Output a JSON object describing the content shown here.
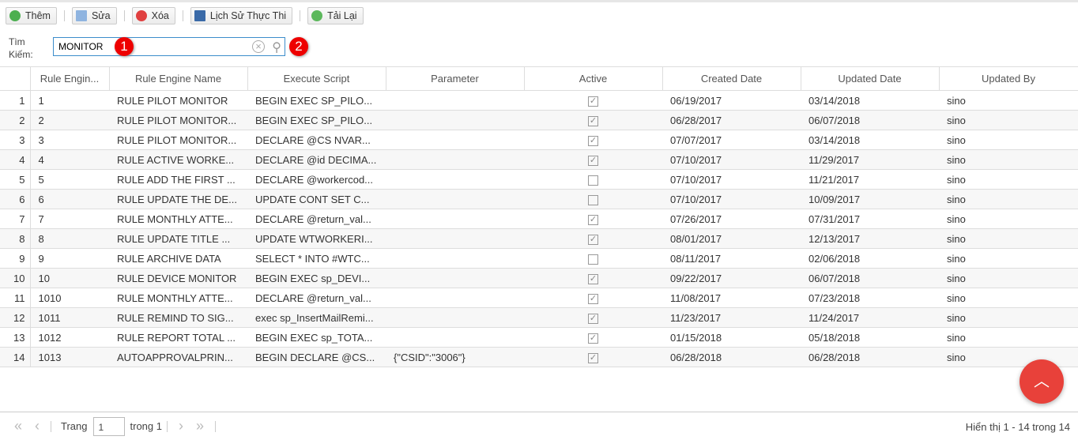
{
  "toolbar": {
    "add": "Thêm",
    "edit": "Sửa",
    "delete": "Xóa",
    "history": "Lịch Sử Thực Thi",
    "reload": "Tải Lại"
  },
  "search": {
    "label": "Tìm Kiếm:",
    "value": "MONITOR",
    "badge1": "1",
    "badge2": "2"
  },
  "columns": [
    "",
    "Rule Engin...",
    "Rule Engine Name",
    "Execute Script",
    "Parameter",
    "Active",
    "Created Date",
    "Updated Date",
    "Updated By"
  ],
  "rows": [
    [
      "1",
      "1",
      "RULE PILOT MONITOR",
      "BEGIN EXEC SP_PILO...",
      "",
      true,
      "06/19/2017",
      "03/14/2018",
      "sino"
    ],
    [
      "2",
      "2",
      "RULE PILOT MONITOR...",
      "BEGIN EXEC SP_PILO...",
      "",
      true,
      "06/28/2017",
      "06/07/2018",
      "sino"
    ],
    [
      "3",
      "3",
      "RULE PILOT MONITOR...",
      "DECLARE @CS NVAR...",
      "",
      true,
      "07/07/2017",
      "03/14/2018",
      "sino"
    ],
    [
      "4",
      "4",
      "RULE ACTIVE WORKE...",
      "DECLARE @id DECIMA...",
      "",
      true,
      "07/10/2017",
      "11/29/2017",
      "sino"
    ],
    [
      "5",
      "5",
      "RULE ADD THE FIRST ...",
      "DECLARE @workercod...",
      "",
      false,
      "07/10/2017",
      "11/21/2017",
      "sino"
    ],
    [
      "6",
      "6",
      "RULE UPDATE THE DE...",
      "UPDATE CONT SET C...",
      "",
      false,
      "07/10/2017",
      "10/09/2017",
      "sino"
    ],
    [
      "7",
      "7",
      "RULE MONTHLY ATTE...",
      "DECLARE @return_val...",
      "",
      true,
      "07/26/2017",
      "07/31/2017",
      "sino"
    ],
    [
      "8",
      "8",
      "RULE UPDATE TITLE ...",
      "UPDATE WTWORKERI...",
      "",
      true,
      "08/01/2017",
      "12/13/2017",
      "sino"
    ],
    [
      "9",
      "9",
      "RULE ARCHIVE DATA",
      "SELECT * INTO #WTC...",
      "",
      false,
      "08/11/2017",
      "02/06/2018",
      "sino"
    ],
    [
      "10",
      "10",
      "RULE DEVICE MONITOR",
      "BEGIN EXEC sp_DEVI...",
      "",
      true,
      "09/22/2017",
      "06/07/2018",
      "sino"
    ],
    [
      "11",
      "1010",
      "RULE MONTHLY ATTE...",
      "DECLARE @return_val...",
      "",
      true,
      "11/08/2017",
      "07/23/2018",
      "sino"
    ],
    [
      "12",
      "1011",
      "RULE REMIND TO SIG...",
      "exec sp_InsertMailRemi...",
      "",
      true,
      "11/23/2017",
      "11/24/2017",
      "sino"
    ],
    [
      "13",
      "1012",
      "RULE REPORT TOTAL ...",
      "BEGIN EXEC sp_TOTA...",
      "",
      true,
      "01/15/2018",
      "05/18/2018",
      "sino"
    ],
    [
      "14",
      "1013",
      "AUTOAPPROVALPRIN...",
      "BEGIN DECLARE @CS...",
      "{\"CSID\":\"3006\"}",
      true,
      "06/28/2018",
      "06/28/2018",
      "sino"
    ]
  ],
  "pager": {
    "page_label": "Trang",
    "page": "1",
    "of_label": "trong 1",
    "info": "Hiển thị 1 - 14 trong 14"
  }
}
